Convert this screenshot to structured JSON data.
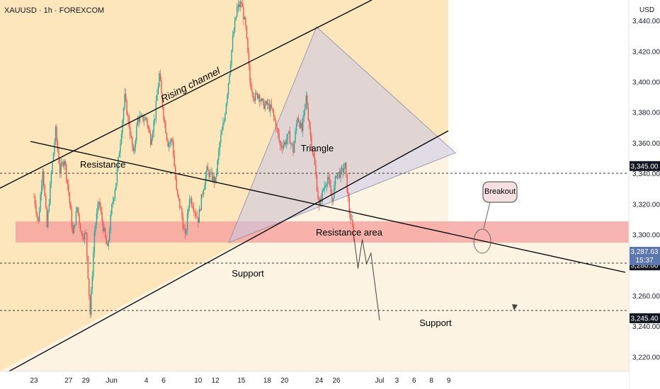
{
  "header": {
    "symbol": "XAUUSD · 1h · FOREXCOM",
    "currency": "USD"
  },
  "chart_data": {
    "type": "candlestick",
    "symbol": "XAUUSD",
    "interval": "1h",
    "source": "FOREXCOM",
    "currency": "USD",
    "y_range": [
      3195,
      3473
    ],
    "y_ticks": [
      {
        "value": 3440,
        "label": "3,440.00"
      },
      {
        "value": 3420,
        "label": "3,420.00"
      },
      {
        "value": 3400,
        "label": "3,400.00"
      },
      {
        "value": 3380,
        "label": "3,380.00"
      },
      {
        "value": 3360,
        "label": "3,360.00"
      },
      {
        "value": 3340,
        "label": "3,340.00"
      },
      {
        "value": 3320,
        "label": "3,320.00"
      },
      {
        "value": 3300,
        "label": "3,300.00"
      },
      {
        "value": 3260,
        "label": "3,260.00"
      },
      {
        "value": 3240,
        "label": "3,240.00"
      },
      {
        "value": 3220,
        "label": "3,220.00"
      }
    ],
    "x_ticks": [
      {
        "day": 0,
        "label": "23"
      },
      {
        "day": 4,
        "label": "27"
      },
      {
        "day": 6,
        "label": "29"
      },
      {
        "day": 9,
        "label": "Jun"
      },
      {
        "day": 13,
        "label": "4"
      },
      {
        "day": 15,
        "label": "6"
      },
      {
        "day": 19,
        "label": "10"
      },
      {
        "day": 21,
        "label": "12"
      },
      {
        "day": 24,
        "label": "15"
      },
      {
        "day": 27,
        "label": "18"
      },
      {
        "day": 29,
        "label": "20"
      },
      {
        "day": 33,
        "label": "24"
      },
      {
        "day": 35,
        "label": "26"
      },
      {
        "day": 40,
        "label": "Jul"
      },
      {
        "day": 42,
        "label": "3"
      },
      {
        "day": 44,
        "label": "6"
      },
      {
        "day": 46,
        "label": "8"
      },
      {
        "day": 48,
        "label": "9"
      }
    ],
    "ohlc_anchors": [
      [
        0,
        3325
      ],
      [
        0.5,
        3308
      ],
      [
        1,
        3344
      ],
      [
        1.5,
        3305
      ],
      [
        2,
        3340
      ],
      [
        2.5,
        3368
      ],
      [
        3,
        3342
      ],
      [
        3.5,
        3350
      ],
      [
        4,
        3328
      ],
      [
        4.5,
        3300
      ],
      [
        5,
        3318
      ],
      [
        5.5,
        3300
      ],
      [
        6,
        3300
      ],
      [
        6.5,
        3248
      ],
      [
        7,
        3302
      ],
      [
        7.5,
        3322
      ],
      [
        8,
        3305
      ],
      [
        8.5,
        3290
      ],
      [
        9,
        3318
      ],
      [
        9.5,
        3335
      ],
      [
        10,
        3362
      ],
      [
        10.5,
        3390
      ],
      [
        11,
        3372
      ],
      [
        11.5,
        3352
      ],
      [
        12,
        3376
      ],
      [
        12.5,
        3376
      ],
      [
        13,
        3376
      ],
      [
        13.5,
        3362
      ],
      [
        14,
        3378
      ],
      [
        14.5,
        3405
      ],
      [
        15,
        3378
      ],
      [
        15.5,
        3360
      ],
      [
        16,
        3362
      ],
      [
        16.5,
        3328
      ],
      [
        17,
        3316
      ],
      [
        17.5,
        3298
      ],
      [
        18,
        3325
      ],
      [
        18.5,
        3318
      ],
      [
        19,
        3310
      ],
      [
        19.5,
        3328
      ],
      [
        20,
        3342
      ],
      [
        20.5,
        3338
      ],
      [
        21,
        3335
      ],
      [
        21.5,
        3360
      ],
      [
        22,
        3375
      ],
      [
        22.5,
        3400
      ],
      [
        23,
        3428
      ],
      [
        23.5,
        3448
      ],
      [
        24,
        3452
      ],
      [
        24.5,
        3435
      ],
      [
        25,
        3400
      ],
      [
        25.5,
        3390
      ],
      [
        26,
        3392
      ],
      [
        26.5,
        3385
      ],
      [
        27,
        3385
      ],
      [
        27.5,
        3382
      ],
      [
        28,
        3372
      ],
      [
        28.5,
        3358
      ],
      [
        29,
        3360
      ],
      [
        29.5,
        3365
      ],
      [
        30,
        3355
      ],
      [
        30.5,
        3378
      ],
      [
        31,
        3368
      ],
      [
        31.5,
        3390
      ],
      [
        32,
        3365
      ],
      [
        32.5,
        3345
      ],
      [
        33,
        3318
      ],
      [
        33.5,
        3330
      ],
      [
        34,
        3338
      ],
      [
        34.5,
        3322
      ],
      [
        35,
        3340
      ],
      [
        35.5,
        3340
      ],
      [
        36,
        3345
      ],
      [
        36.5,
        3315
      ],
      [
        37,
        3300
      ]
    ],
    "shown_candles": "hourly candles from 23 May to 27 Jun, approximated",
    "levels": [
      {
        "value": 3345.0,
        "label": "3,345.00",
        "style": "dashed"
      },
      {
        "value": 3280.0,
        "label": "3,280.00",
        "style": "dashed"
      },
      {
        "value": 3245.4,
        "label": "3,245.40",
        "style": "dashed"
      }
    ],
    "current_price": {
      "value": 3287.63,
      "label": "3,287.63",
      "countdown": "15:37"
    },
    "resistance_area": [
      3294,
      3309
    ],
    "projection_path": [
      [
        37,
        3300
      ],
      [
        37.5,
        3278
      ],
      [
        38,
        3297
      ],
      [
        38.5,
        3281
      ],
      [
        39,
        3288
      ],
      [
        40,
        3244
      ]
    ]
  },
  "annotations": {
    "rising_channel": "Rising channel",
    "triangle": "Triangle",
    "resistance": "Resistance",
    "resistance_area": "Resistance area",
    "support_upper": "Support",
    "support_lower": "Support",
    "breakout": "Breakout"
  },
  "colors": {
    "bull": "#26a69a",
    "bear": "#ef5350",
    "channel_fill": "#fde4b6",
    "resistance_zone": "#f6a19c",
    "triangle_fill": "#c9c6e6",
    "price_badge": "#5b77ad",
    "level_badge": "#131722"
  }
}
